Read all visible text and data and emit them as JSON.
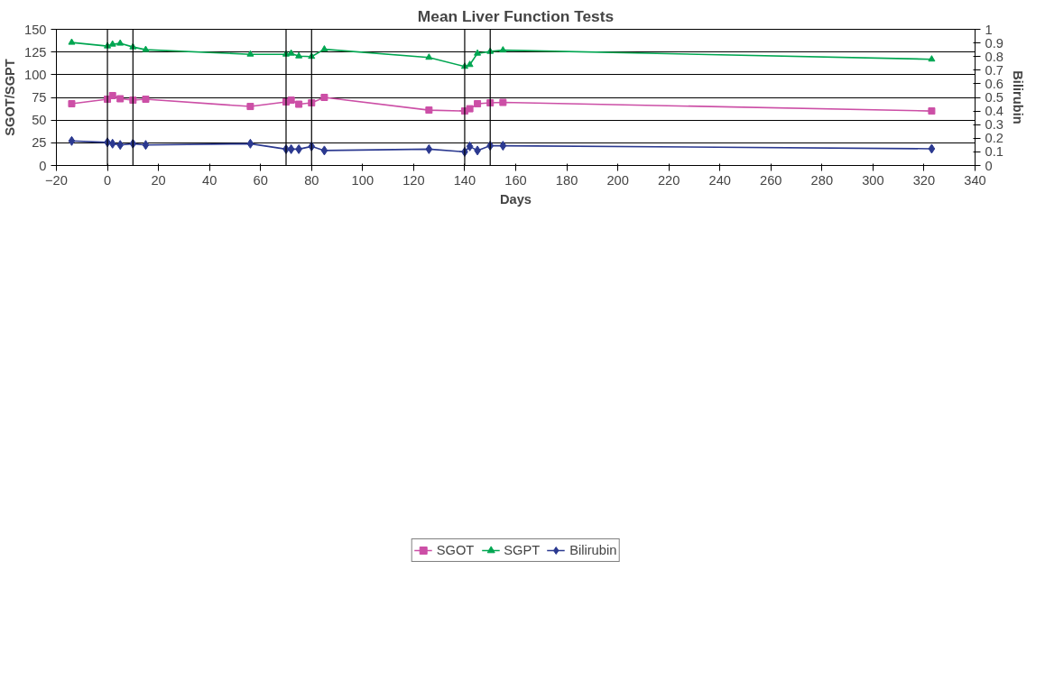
{
  "chart_data": {
    "type": "line",
    "title": "Mean Liver Function Tests",
    "xlabel": "Days",
    "ylabel": "SGOT/SGPT",
    "y2label": "Bilirubin",
    "x": [
      -14,
      0,
      2,
      5,
      10,
      15,
      56,
      70,
      72,
      75,
      80,
      85,
      126,
      140,
      142,
      145,
      150,
      155,
      323
    ],
    "series": [
      {
        "name": "SGOT",
        "color": "#cc4fa6",
        "marker": "square",
        "values": [
          68,
          73,
          77,
          73.5,
          72,
          73,
          65,
          70,
          72,
          67.5,
          69,
          75,
          61,
          60,
          62.5,
          68,
          69,
          69.5,
          60
        ]
      },
      {
        "name": "SGPT",
        "color": "#00a651",
        "marker": "triangle",
        "values": [
          135.5,
          131.5,
          133.5,
          134.5,
          130.5,
          127.5,
          122.5,
          122.5,
          123.5,
          120.5,
          120,
          128,
          119,
          109,
          111,
          123.5,
          125.5,
          127,
          117
        ]
      },
      {
        "name": "Bilirubin",
        "color": "#2b3990",
        "marker": "diamond",
        "axis": "y2",
        "values": [
          0.18,
          0.17,
          0.16,
          0.151,
          0.16,
          0.151,
          0.16,
          0.12,
          0.12,
          0.12,
          0.14,
          0.11,
          0.12,
          0.1,
          0.14,
          0.11,
          0.145,
          0.145,
          0.123
        ]
      }
    ],
    "xlim": [
      -20,
      340
    ],
    "xticks": [
      -20,
      0,
      20,
      40,
      60,
      80,
      100,
      120,
      140,
      160,
      180,
      200,
      220,
      240,
      260,
      280,
      300,
      320,
      340
    ],
    "ylim": [
      0,
      150
    ],
    "yticks": [
      0,
      25,
      50,
      75,
      100,
      125,
      150
    ],
    "y2lim": [
      0,
      1
    ],
    "y2ticks": [
      0,
      0.1,
      0.2,
      0.3,
      0.4,
      0.5,
      0.6,
      0.7,
      0.8,
      0.9,
      1
    ],
    "ref_lines": [
      {
        "axis": "x",
        "value": 0,
        "color": "#000000"
      },
      {
        "axis": "x",
        "value": 10,
        "color": "#000000"
      },
      {
        "axis": "x",
        "value": 70,
        "color": "#000000"
      },
      {
        "axis": "x",
        "value": 80,
        "color": "#000000"
      },
      {
        "axis": "x",
        "value": 140,
        "color": "#000000"
      },
      {
        "axis": "x",
        "value": 150,
        "color": "#000000"
      }
    ],
    "grid": "y",
    "legend": "bottom",
    "line_style": "solid"
  }
}
